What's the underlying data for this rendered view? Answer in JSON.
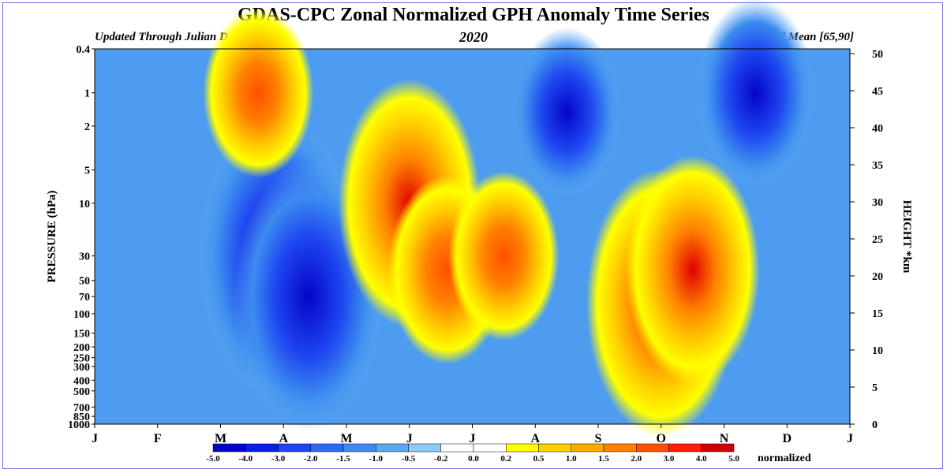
{
  "header": {
    "title": "GDAS-CPC Zonal Normalized GPH Anomaly Time Series",
    "updated": "Updated Through Julian Day = 365",
    "year": "2020",
    "zonal": "Zonal Mean [65,90]"
  },
  "chart_data": {
    "type": "heatmap",
    "title": "GDAS-CPC Zonal Normalized GPH Anomaly Time Series",
    "ylabel": "PRESSURE (hPa)",
    "y2label": "HEIGHT *km",
    "x_ticks": [
      "J",
      "F",
      "M",
      "A",
      "M",
      "J",
      "J",
      "A",
      "S",
      "O",
      "N",
      "D",
      "J"
    ],
    "y_ticks": [
      0.4,
      1,
      2,
      5,
      10,
      30,
      50,
      70,
      100,
      150,
      200,
      250,
      300,
      400,
      500,
      700,
      850,
      1000
    ],
    "y_tick_labels": [
      "0.4",
      "1",
      "2",
      "5",
      "10",
      "30",
      "50",
      "70",
      "100",
      "150",
      "200",
      "250",
      "300",
      "400",
      "500",
      "700",
      "850",
      "1000"
    ],
    "y2_ticks": [
      0,
      5,
      10,
      15,
      20,
      25,
      30,
      35,
      40,
      45,
      50
    ],
    "ylim": [
      1000,
      0.4
    ],
    "y_scale": "log",
    "legend": {
      "position": "bottom",
      "unit": "normalized",
      "labels": [
        "-5.0",
        "-4.0",
        "-3.0",
        "-2.0",
        "-1.5",
        "-1.0",
        "-0.5",
        "-0.2",
        "0.0",
        "0.2",
        "0.5",
        "1.0",
        "1.5",
        "2.0",
        "3.0",
        "4.0",
        "5.0"
      ],
      "colors": [
        "#0505c8",
        "#0a1ee6",
        "#1e46f0",
        "#2d6cf2",
        "#3c8cf0",
        "#5aa7f2",
        "#8ccaf7",
        "#ffffff",
        "#ffffff",
        "#ffff00",
        "#ffd000",
        "#ffaa00",
        "#ff8000",
        "#ff5000",
        "#ff1e00",
        "#d00000"
      ]
    },
    "anomaly_regions": [
      {
        "month": 2.9,
        "p": 30,
        "value": -4.5
      },
      {
        "month": 3.4,
        "p": 70,
        "value": -4.0
      },
      {
        "month": 5.0,
        "p": 10,
        "value": 3.5
      },
      {
        "month": 5.6,
        "p": 40,
        "value": 2.0
      },
      {
        "month": 6.5,
        "p": 30,
        "value": 1.5
      },
      {
        "month": 9.0,
        "p": 80,
        "value": 4.0
      },
      {
        "month": 9.5,
        "p": 40,
        "value": 3.0
      },
      {
        "month": 10.5,
        "p": 1,
        "value": -2.0
      },
      {
        "month": 7.5,
        "p": 1.5,
        "value": -1.5
      },
      {
        "month": 2.6,
        "p": 1,
        "value": 1.5
      }
    ]
  }
}
